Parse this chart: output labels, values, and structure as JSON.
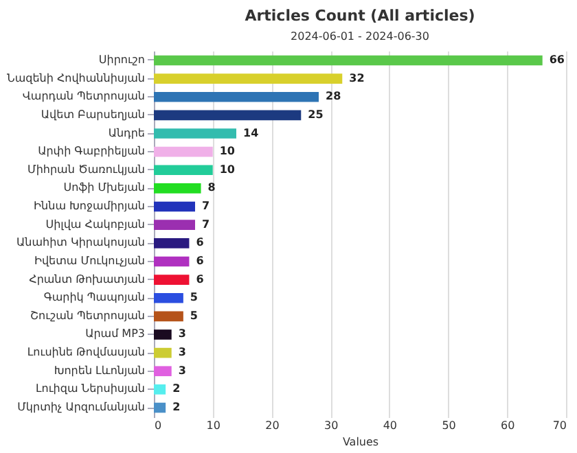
{
  "chart_data": {
    "type": "bar",
    "orientation": "horizontal",
    "title": "Articles Count (All articles)",
    "subtitle": "2024-06-01 - 2024-06-30",
    "xlabel": "Values",
    "categories": [
      "Սիրուշո",
      "Նազենի Հովհաննիսյան",
      "Վարդան Պետրոսյան",
      "Ավետ Բարսեղյան",
      "Անդրե",
      "Արփի Գաբրիելյան",
      "Միհրան Ծառուկյան",
      "Սոֆի Մխեյան",
      "Իննա Խոջամիրյան",
      "Սիլվա Հակոբյան",
      "Անահիտ Կիրակոսյան",
      "Իվետա Մուկուչյան",
      "Հրանտ Թոխատյան",
      "Գարիկ Պապոյան",
      "Շուշան Պետրոսյան",
      "Արամ MP3",
      "Լուսինե Թովմասյան",
      "Խորեն Լևոնյան",
      "Լուիզա Ներսիսյան",
      "Մկրտիչ Արզումանյան"
    ],
    "values": [
      66,
      32,
      28,
      25,
      14,
      10,
      10,
      8,
      7,
      7,
      6,
      6,
      6,
      5,
      5,
      3,
      3,
      3,
      2,
      2
    ],
    "colors": [
      "#5ac84a",
      "#d8d02c",
      "#2e74b4",
      "#1c3a80",
      "#33bcae",
      "#f0b0e8",
      "#22cc99",
      "#22dd22",
      "#2233bb",
      "#9b2fb0",
      "#2a1a80",
      "#b030c0",
      "#ee1133",
      "#2b4ee0",
      "#b5531a",
      "#1a0a20",
      "#cccc33",
      "#e060e0",
      "#55eeee",
      "#4a90c8"
    ],
    "xlim": [
      0,
      70
    ],
    "xticks": [
      0,
      10,
      20,
      30,
      40,
      50,
      60,
      70
    ],
    "grid": "x",
    "data_labels": true
  }
}
